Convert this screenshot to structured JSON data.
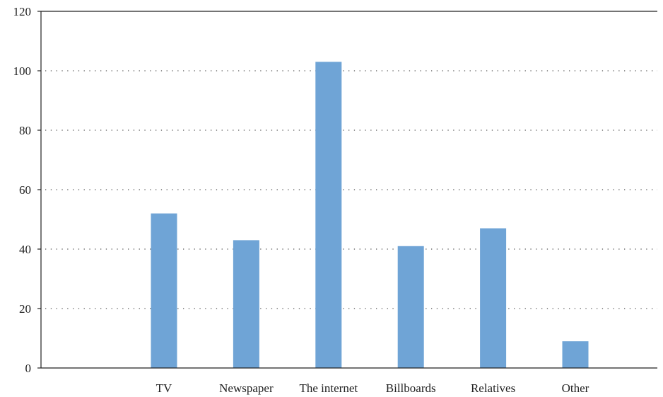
{
  "chart_data": {
    "type": "bar",
    "categories": [
      "TV",
      "Newspaper",
      "The internet",
      "Billboards",
      "Relatives",
      "Other"
    ],
    "values": [
      52,
      43,
      103,
      41,
      47,
      9
    ],
    "title": "",
    "xlabel": "",
    "ylabel": "",
    "ylim": [
      0,
      120
    ],
    "yticks": [
      "0",
      "20",
      "40",
      "60",
      "80",
      "100",
      "120"
    ],
    "grid": "horizontal dotted",
    "bar_color": "#6fa4d6"
  }
}
